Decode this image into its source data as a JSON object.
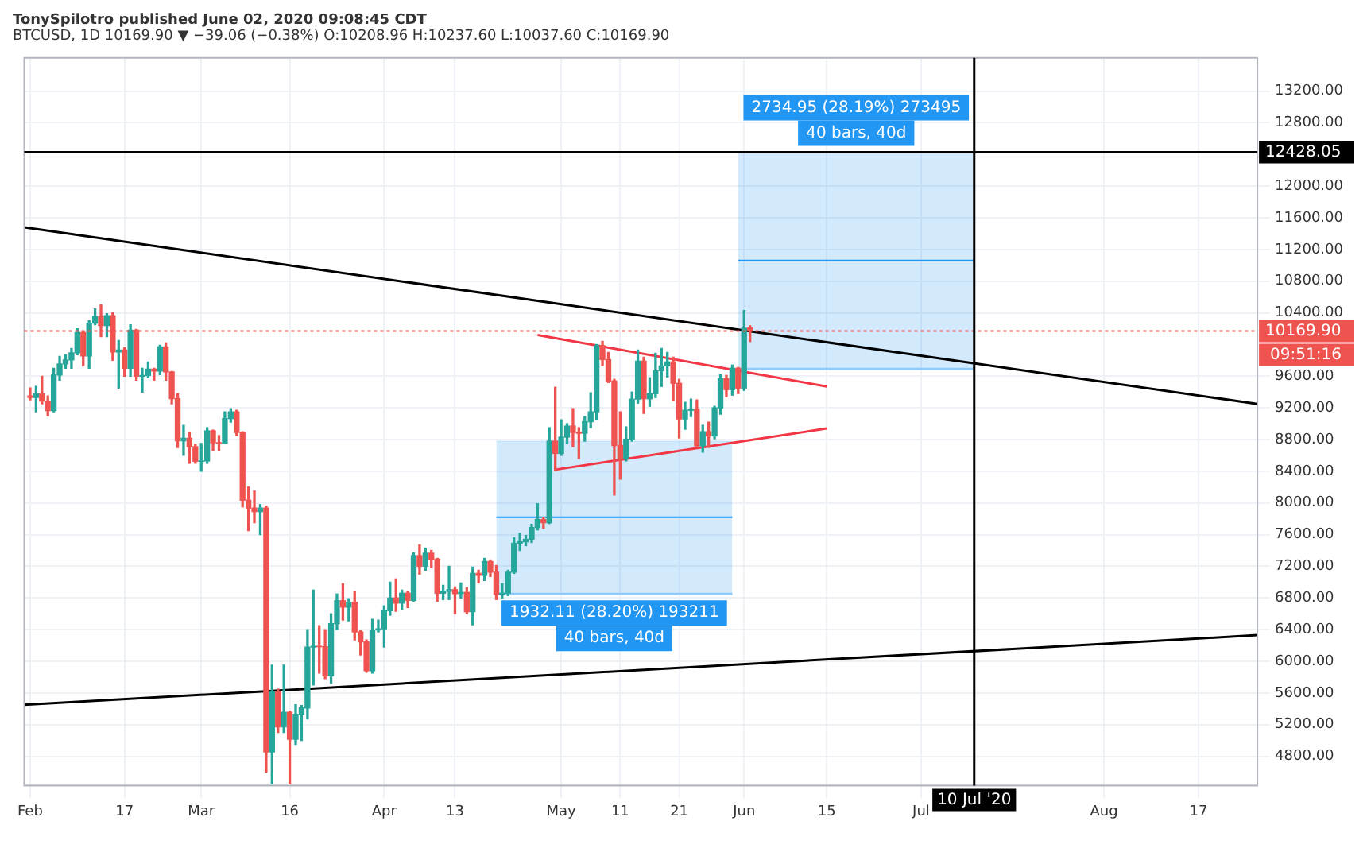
{
  "chart_data": {
    "type": "candlestick",
    "title": "TonySpilotro published June 02, 2020 09:08:45 CDT",
    "subtitle": "BTCUSD, 1D  10169.90 ▼ −39.06 (−0.38%)  O:10208.96 H:10237.60 L:10037.60 C:10169.90",
    "x": [
      "2020-02-01",
      "2020-02-02",
      "2020-02-03",
      "2020-02-04",
      "2020-02-05",
      "2020-02-06",
      "2020-02-07",
      "2020-02-08",
      "2020-02-09",
      "2020-02-10",
      "2020-02-11",
      "2020-02-12",
      "2020-02-13",
      "2020-02-14",
      "2020-02-15",
      "2020-02-16",
      "2020-02-17",
      "2020-02-18",
      "2020-02-19",
      "2020-02-20",
      "2020-02-21",
      "2020-02-22",
      "2020-02-23",
      "2020-02-24",
      "2020-02-25",
      "2020-02-26",
      "2020-02-27",
      "2020-02-28",
      "2020-02-29",
      "2020-03-01",
      "2020-03-02",
      "2020-03-03",
      "2020-03-04",
      "2020-03-05",
      "2020-03-06",
      "2020-03-07",
      "2020-03-08",
      "2020-03-09",
      "2020-03-10",
      "2020-03-11",
      "2020-03-12",
      "2020-03-13",
      "2020-03-14",
      "2020-03-15",
      "2020-03-16",
      "2020-03-17",
      "2020-03-18",
      "2020-03-19",
      "2020-03-20",
      "2020-03-21",
      "2020-03-22",
      "2020-03-23",
      "2020-03-24",
      "2020-03-25",
      "2020-03-26",
      "2020-03-27",
      "2020-03-28",
      "2020-03-29",
      "2020-03-30",
      "2020-03-31",
      "2020-04-01",
      "2020-04-02",
      "2020-04-03",
      "2020-04-04",
      "2020-04-05",
      "2020-04-06",
      "2020-04-07",
      "2020-04-08",
      "2020-04-09",
      "2020-04-10",
      "2020-04-11",
      "2020-04-12",
      "2020-04-13",
      "2020-04-14",
      "2020-04-15",
      "2020-04-16",
      "2020-04-17",
      "2020-04-18",
      "2020-04-19",
      "2020-04-20",
      "2020-04-21",
      "2020-04-22",
      "2020-04-23",
      "2020-04-24",
      "2020-04-25",
      "2020-04-26",
      "2020-04-27",
      "2020-04-28",
      "2020-04-29",
      "2020-04-30",
      "2020-05-01",
      "2020-05-02",
      "2020-05-03",
      "2020-05-04",
      "2020-05-05",
      "2020-05-06",
      "2020-05-07",
      "2020-05-08",
      "2020-05-09",
      "2020-05-10",
      "2020-05-11",
      "2020-05-12",
      "2020-05-13",
      "2020-05-14",
      "2020-05-15",
      "2020-05-16",
      "2020-05-17",
      "2020-05-18",
      "2020-05-19",
      "2020-05-20",
      "2020-05-21",
      "2020-05-22",
      "2020-05-23",
      "2020-05-24",
      "2020-05-25",
      "2020-05-26",
      "2020-05-27",
      "2020-05-28",
      "2020-05-29",
      "2020-05-30",
      "2020-05-31",
      "2020-06-01",
      "2020-06-02"
    ],
    "ohlc": [
      [
        9350,
        9450,
        9300,
        9332
      ],
      [
        9332,
        9470,
        9150,
        9375
      ],
      [
        9375,
        9600,
        9250,
        9285
      ],
      [
        9285,
        9350,
        9100,
        9165
      ],
      [
        9165,
        9700,
        9150,
        9615
      ],
      [
        9615,
        9850,
        9550,
        9755
      ],
      [
        9755,
        9870,
        9700,
        9805
      ],
      [
        9805,
        9950,
        9700,
        9895
      ],
      [
        9895,
        10200,
        9870,
        10150
      ],
      [
        10150,
        10170,
        9730,
        9855
      ],
      [
        9855,
        10300,
        9700,
        10270
      ],
      [
        10270,
        10450,
        10250,
        10355
      ],
      [
        10355,
        10500,
        10100,
        10240
      ],
      [
        10240,
        10390,
        10100,
        10365
      ],
      [
        10365,
        10400,
        9800,
        9905
      ],
      [
        9905,
        10050,
        9450,
        9930
      ],
      [
        9930,
        9960,
        9600,
        9700
      ],
      [
        9700,
        10250,
        9600,
        10180
      ],
      [
        10180,
        10190,
        9550,
        9600
      ],
      [
        9600,
        9700,
        9400,
        9610
      ],
      [
        9610,
        9780,
        9580,
        9690
      ],
      [
        9690,
        9700,
        9550,
        9665
      ],
      [
        9665,
        9990,
        9620,
        9970
      ],
      [
        9970,
        10020,
        9550,
        9655
      ],
      [
        9655,
        9660,
        9250,
        9315
      ],
      [
        9315,
        9380,
        8700,
        8785
      ],
      [
        8785,
        8980,
        8600,
        8815
      ],
      [
        8815,
        8890,
        8500,
        8710
      ],
      [
        8710,
        8740,
        8500,
        8525
      ],
      [
        8525,
        8750,
        8400,
        8530
      ],
      [
        8530,
        8950,
        8500,
        8910
      ],
      [
        8910,
        8920,
        8660,
        8760
      ],
      [
        8760,
        8850,
        8660,
        8755
      ],
      [
        8755,
        9150,
        8750,
        9065
      ],
      [
        9065,
        9190,
        9020,
        9150
      ],
      [
        9150,
        9170,
        8850,
        8890
      ],
      [
        8890,
        8900,
        7950,
        8035
      ],
      [
        8035,
        8200,
        7650,
        7935
      ],
      [
        7935,
        8150,
        7750,
        7890
      ],
      [
        7890,
        7980,
        7600,
        7935
      ],
      [
        7935,
        7960,
        4600,
        4855
      ],
      [
        4855,
        5950,
        4450,
        5615
      ],
      [
        5615,
        5650,
        5100,
        5170
      ],
      [
        5170,
        5950,
        5100,
        5355
      ],
      [
        5355,
        5370,
        4450,
        5015
      ],
      [
        5015,
        5450,
        4950,
        5330
      ],
      [
        5330,
        5440,
        5000,
        5410
      ],
      [
        5410,
        6400,
        5270,
        6180
      ],
      [
        6180,
        6900,
        5700,
        6190
      ],
      [
        6190,
        6450,
        5850,
        6185
      ],
      [
        6185,
        6400,
        5780,
        5815
      ],
      [
        5815,
        6600,
        5720,
        6475
      ],
      [
        6475,
        6850,
        6400,
        6765
      ],
      [
        6765,
        6980,
        6520,
        6685
      ],
      [
        6685,
        6790,
        6510,
        6745
      ],
      [
        6745,
        6880,
        6270,
        6370
      ],
      [
        6370,
        6390,
        6080,
        6245
      ],
      [
        6245,
        6270,
        5860,
        5880
      ],
      [
        5880,
        6530,
        5850,
        6395
      ],
      [
        6395,
        6520,
        6370,
        6410
      ],
      [
        6410,
        6700,
        6180,
        6640
      ],
      [
        6640,
        7000,
        6580,
        6800
      ],
      [
        6800,
        7040,
        6630,
        6735
      ],
      [
        6735,
        6900,
        6660,
        6860
      ],
      [
        6860,
        6880,
        6680,
        6770
      ],
      [
        6770,
        7370,
        6760,
        7335
      ],
      [
        7335,
        7470,
        7100,
        7200
      ],
      [
        7200,
        7430,
        7150,
        7365
      ],
      [
        7365,
        7400,
        7180,
        7290
      ],
      [
        7290,
        7300,
        6760,
        6860
      ],
      [
        6860,
        6960,
        6780,
        6885
      ],
      [
        6885,
        7200,
        6780,
        6905
      ],
      [
        6905,
        6940,
        6600,
        6855
      ],
      [
        6855,
        6990,
        6800,
        6870
      ],
      [
        6870,
        6930,
        6600,
        6625
      ],
      [
        6625,
        7190,
        6460,
        7110
      ],
      [
        7110,
        7150,
        6990,
        7085
      ],
      [
        7085,
        7300,
        7020,
        7260
      ],
      [
        7260,
        7280,
        7070,
        7125
      ],
      [
        7125,
        7210,
        6780,
        6845
      ],
      [
        6845,
        6980,
        6800,
        6860
      ],
      [
        6860,
        7150,
        6830,
        7125
      ],
      [
        7125,
        7560,
        7110,
        7490
      ],
      [
        7490,
        7620,
        7400,
        7510
      ],
      [
        7510,
        7590,
        7460,
        7540
      ],
      [
        7540,
        7730,
        7500,
        7690
      ],
      [
        7690,
        7990,
        7660,
        7790
      ],
      [
        7790,
        7810,
        7680,
        7750
      ],
      [
        7750,
        8950,
        7740,
        8780
      ],
      [
        8780,
        9460,
        8410,
        8625
      ],
      [
        8625,
        9050,
        8600,
        8830
      ],
      [
        8830,
        9000,
        8750,
        8970
      ],
      [
        8970,
        9190,
        8710,
        8890
      ],
      [
        8890,
        8950,
        8560,
        8880
      ],
      [
        8880,
        9090,
        8780,
        9025
      ],
      [
        9025,
        9390,
        8950,
        9150
      ],
      [
        9150,
        10000,
        9050,
        9985
      ],
      [
        9985,
        10040,
        9730,
        9810
      ],
      [
        9810,
        9900,
        9520,
        9540
      ],
      [
        9540,
        9560,
        8100,
        8725
      ],
      [
        8725,
        9150,
        8300,
        8560
      ],
      [
        8560,
        8960,
        8530,
        8805
      ],
      [
        8805,
        9400,
        8780,
        9310
      ],
      [
        9310,
        9930,
        9260,
        9790
      ],
      [
        9790,
        9840,
        9130,
        9315
      ],
      [
        9315,
        9580,
        9220,
        9380
      ],
      [
        9380,
        9890,
        9330,
        9670
      ],
      [
        9670,
        9950,
        9470,
        9730
      ],
      [
        9730,
        9900,
        9590,
        9780
      ],
      [
        9780,
        9840,
        9290,
        9510
      ],
      [
        9510,
        9560,
        8820,
        9060
      ],
      [
        9060,
        9270,
        8930,
        9170
      ],
      [
        9170,
        9310,
        9090,
        9180
      ],
      [
        9180,
        9300,
        8710,
        8720
      ],
      [
        8720,
        8980,
        8640,
        8900
      ],
      [
        8900,
        9020,
        8700,
        8845
      ],
      [
        8845,
        9220,
        8810,
        9200
      ],
      [
        9200,
        9620,
        9120,
        9570
      ],
      [
        9570,
        9610,
        9340,
        9430
      ],
      [
        9430,
        9740,
        9360,
        9700
      ],
      [
        9700,
        9710,
        9380,
        9450
      ],
      [
        9450,
        10430,
        9420,
        10205
      ],
      [
        10208.96,
        10237.6,
        10037.6,
        10169.9
      ]
    ],
    "series": [
      {
        "type": "line",
        "color": "#000000",
        "x": [
          "2020-01-31",
          "2020-08-27"
        ],
        "values": [
          11480,
          9250
        ]
      },
      {
        "type": "line",
        "color": "#000000",
        "x": [
          "2020-01-31",
          "2020-08-27"
        ],
        "values": [
          5450,
          6330
        ]
      },
      {
        "type": "line",
        "color": "#f23645",
        "x": [
          "2020-04-27",
          "2020-06-15"
        ],
        "values": [
          10120,
          9470
        ]
      },
      {
        "type": "line",
        "color": "#f23645",
        "x": [
          "2020-04-30",
          "2020-06-15"
        ],
        "values": [
          8420,
          8940
        ]
      },
      {
        "type": "line",
        "color": "#90caf9",
        "x": [
          "2020-04-20",
          "2020-05-30"
        ],
        "values": [
          6850,
          6850
        ]
      },
      {
        "type": "area",
        "color": "#2196f3",
        "x": [
          "2020-04-20",
          "2020-05-30"
        ],
        "values": [
          8780,
          8780
        ]
      },
      {
        "type": "line",
        "color": "#2196f3",
        "x": [
          "2020-04-20",
          "2020-05-30"
        ],
        "values": [
          7820,
          7820
        ]
      },
      {
        "type": "line",
        "color": "#90caf9",
        "x": [
          "2020-05-31",
          "2020-07-10"
        ],
        "values": [
          9690,
          9690
        ]
      },
      {
        "type": "area",
        "color": "#2196f3",
        "x": [
          "2020-05-31",
          "2020-07-10"
        ],
        "values": [
          12428.05,
          12428.05
        ]
      },
      {
        "type": "line",
        "color": "#2196f3",
        "x": [
          "2020-05-31",
          "2020-07-10"
        ],
        "values": [
          11060,
          11060
        ]
      }
    ],
    "xlim": [
      "2020-01-31",
      "2020-08-27"
    ],
    "xticks": [
      {
        "value": "2020-02-01",
        "label": "Feb"
      },
      {
        "value": "2020-02-17",
        "label": "17"
      },
      {
        "value": "2020-03-01",
        "label": "Mar"
      },
      {
        "value": "2020-03-16",
        "label": "16"
      },
      {
        "value": "2020-04-01",
        "label": "Apr"
      },
      {
        "value": "2020-04-13",
        "label": "13"
      },
      {
        "value": "2020-05-01",
        "label": "May"
      },
      {
        "value": "2020-05-11",
        "label": "11"
      },
      {
        "value": "2020-05-21",
        "label": "21"
      },
      {
        "value": "2020-06-01",
        "label": "Jun"
      },
      {
        "value": "2020-06-15",
        "label": "15"
      },
      {
        "value": "2020-07-01",
        "label": "Jul"
      },
      {
        "value": "2020-08-01",
        "label": "Aug"
      },
      {
        "value": "2020-08-17",
        "label": "17"
      }
    ],
    "ylim": [
      4430,
      13620
    ],
    "yticks": [
      {
        "value": 4800,
        "label": "4800.00"
      },
      {
        "value": 5200,
        "label": "5200.00"
      },
      {
        "value": 5600,
        "label": "5600.00"
      },
      {
        "value": 6000,
        "label": "6000.00"
      },
      {
        "value": 6400,
        "label": "6400.00"
      },
      {
        "value": 6800,
        "label": "6800.00"
      },
      {
        "value": 7200,
        "label": "7200.00"
      },
      {
        "value": 7600,
        "label": "7600.00"
      },
      {
        "value": 8000,
        "label": "8000.00"
      },
      {
        "value": 8400,
        "label": "8400.00"
      },
      {
        "value": 8800,
        "label": "8800.00"
      },
      {
        "value": 9200,
        "label": "9200.00"
      },
      {
        "value": 9600,
        "label": "9600.00"
      },
      {
        "value": 10400,
        "label": "10400.00"
      },
      {
        "value": 10800,
        "label": "10800.00"
      },
      {
        "value": 11200,
        "label": "11200.00"
      },
      {
        "value": 11600,
        "label": "11600.00"
      },
      {
        "value": 12000,
        "label": "12000.00"
      },
      {
        "value": 12800,
        "label": "12800.00"
      },
      {
        "value": 13200,
        "label": "13200.00"
      }
    ],
    "ref_lines": [
      {
        "axis": "y",
        "value": 12428.05,
        "label": "12428.05",
        "color": "#000000"
      },
      {
        "axis": "y",
        "value": 10169.9,
        "label": "10169.90",
        "color": "#ef5350",
        "line_style": "dotted"
      },
      {
        "axis": "x",
        "value": "2020-07-10",
        "label": "10 Jul '20",
        "color": "#000000"
      }
    ],
    "annotations": [
      {
        "text": "1932.11 (28.20%) 193211",
        "x": "2020-05-10",
        "y": 6850
      },
      {
        "text": "40 bars, 40d",
        "x": "2020-05-10",
        "y": 6850
      },
      {
        "text": "2734.95 (28.19%) 273495",
        "x": "2020-06-20",
        "y": 12428.05
      },
      {
        "text": "40 bars, 40d",
        "x": "2020-06-20",
        "y": 12428.05
      },
      "09:51:16"
    ],
    "grid": true,
    "legend": false
  }
}
